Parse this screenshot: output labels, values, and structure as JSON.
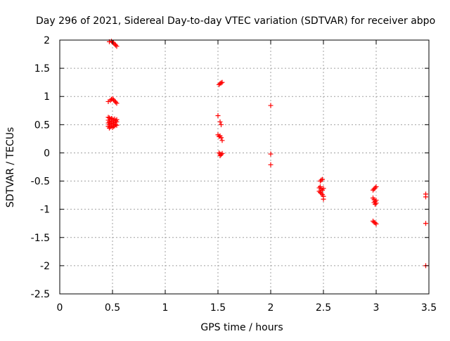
{
  "chart_data": {
    "type": "scatter",
    "title": "Day 296 of 2021, Sidereal Day-to-day VTEC variation (SDTVAR) for receiver abpo",
    "xlabel": "GPS time / hours",
    "ylabel": "SDTVAR / TECUs",
    "xlim": [
      0,
      3.5
    ],
    "ylim": [
      -2.5,
      2
    ],
    "xticks": [
      0,
      0.5,
      1,
      1.5,
      2,
      2.5,
      3,
      3.5
    ],
    "xtick_labels": [
      "0",
      "0.5",
      "1",
      "1.5",
      "2",
      "2.5",
      "3",
      "3.5"
    ],
    "yticks": [
      2,
      1.5,
      1,
      0.5,
      0,
      -0.5,
      -1,
      -1.5,
      -2,
      -2.5
    ],
    "ytick_labels": [
      "2",
      "1.5",
      "1",
      "0.5",
      "0",
      "-0.5",
      "-1",
      "-1.5",
      "-2",
      "-2.5"
    ],
    "grid": true,
    "marker": "plus",
    "series": [
      {
        "name": "SDTVAR",
        "color": "#ff0000",
        "points": [
          [
            0.47,
            1.97
          ],
          [
            0.49,
            1.98
          ],
          [
            0.5,
            1.96
          ],
          [
            0.51,
            1.95
          ],
          [
            0.52,
            1.93
          ],
          [
            0.53,
            1.91
          ],
          [
            0.54,
            1.89
          ],
          [
            0.46,
            0.91
          ],
          [
            0.48,
            0.93
          ],
          [
            0.49,
            0.95
          ],
          [
            0.5,
            0.96
          ],
          [
            0.51,
            0.94
          ],
          [
            0.52,
            0.92
          ],
          [
            0.53,
            0.9
          ],
          [
            0.54,
            0.88
          ],
          [
            0.46,
            0.63
          ],
          [
            0.46,
            0.58
          ],
          [
            0.46,
            0.53
          ],
          [
            0.46,
            0.47
          ],
          [
            0.47,
            0.62
          ],
          [
            0.47,
            0.55
          ],
          [
            0.47,
            0.5
          ],
          [
            0.47,
            0.44
          ],
          [
            0.48,
            0.6
          ],
          [
            0.48,
            0.52
          ],
          [
            0.48,
            0.46
          ],
          [
            0.49,
            0.61
          ],
          [
            0.49,
            0.56
          ],
          [
            0.49,
            0.48
          ],
          [
            0.5,
            0.6
          ],
          [
            0.5,
            0.53
          ],
          [
            0.5,
            0.45
          ],
          [
            0.51,
            0.58
          ],
          [
            0.51,
            0.51
          ],
          [
            0.51,
            0.47
          ],
          [
            0.52,
            0.6
          ],
          [
            0.52,
            0.54
          ],
          [
            0.52,
            0.48
          ],
          [
            0.53,
            0.57
          ],
          [
            0.53,
            0.5
          ],
          [
            0.54,
            0.59
          ],
          [
            0.54,
            0.55
          ],
          [
            0.54,
            0.49
          ],
          [
            1.51,
            1.21
          ],
          [
            1.52,
            1.23
          ],
          [
            1.53,
            1.24
          ],
          [
            1.54,
            1.25
          ],
          [
            1.5,
            0.66
          ],
          [
            1.52,
            0.55
          ],
          [
            1.53,
            0.5
          ],
          [
            1.5,
            0.32
          ],
          [
            1.51,
            0.29
          ],
          [
            1.52,
            0.3
          ],
          [
            1.53,
            0.27
          ],
          [
            1.54,
            0.22
          ],
          [
            1.51,
            0.0
          ],
          [
            1.52,
            -0.02
          ],
          [
            1.53,
            -0.03
          ],
          [
            1.54,
            -0.01
          ],
          [
            1.52,
            -0.05
          ],
          [
            2.0,
            0.84
          ],
          [
            2.0,
            -0.02
          ],
          [
            2.0,
            -0.21
          ],
          [
            2.47,
            -0.5
          ],
          [
            2.48,
            -0.48
          ],
          [
            2.49,
            -0.47
          ],
          [
            2.46,
            -0.62
          ],
          [
            2.47,
            -0.6
          ],
          [
            2.48,
            -0.64
          ],
          [
            2.49,
            -0.66
          ],
          [
            2.5,
            -0.63
          ],
          [
            2.46,
            -0.68
          ],
          [
            2.47,
            -0.7
          ],
          [
            2.48,
            -0.72
          ],
          [
            2.49,
            -0.74
          ],
          [
            2.5,
            -0.77
          ],
          [
            2.5,
            -0.82
          ],
          [
            2.97,
            -0.66
          ],
          [
            2.98,
            -0.64
          ],
          [
            2.99,
            -0.62
          ],
          [
            3.0,
            -0.6
          ],
          [
            2.97,
            -0.8
          ],
          [
            2.98,
            -0.83
          ],
          [
            2.99,
            -0.86
          ],
          [
            3.0,
            -0.84
          ],
          [
            2.98,
            -0.88
          ],
          [
            2.99,
            -0.91
          ],
          [
            3.0,
            -0.89
          ],
          [
            2.97,
            -1.21
          ],
          [
            2.98,
            -1.23
          ],
          [
            2.99,
            -1.24
          ],
          [
            3.0,
            -1.26
          ],
          [
            3.47,
            -0.73
          ],
          [
            3.47,
            -0.78
          ],
          [
            3.47,
            -1.25
          ],
          [
            3.47,
            -2.0
          ]
        ]
      }
    ]
  }
}
